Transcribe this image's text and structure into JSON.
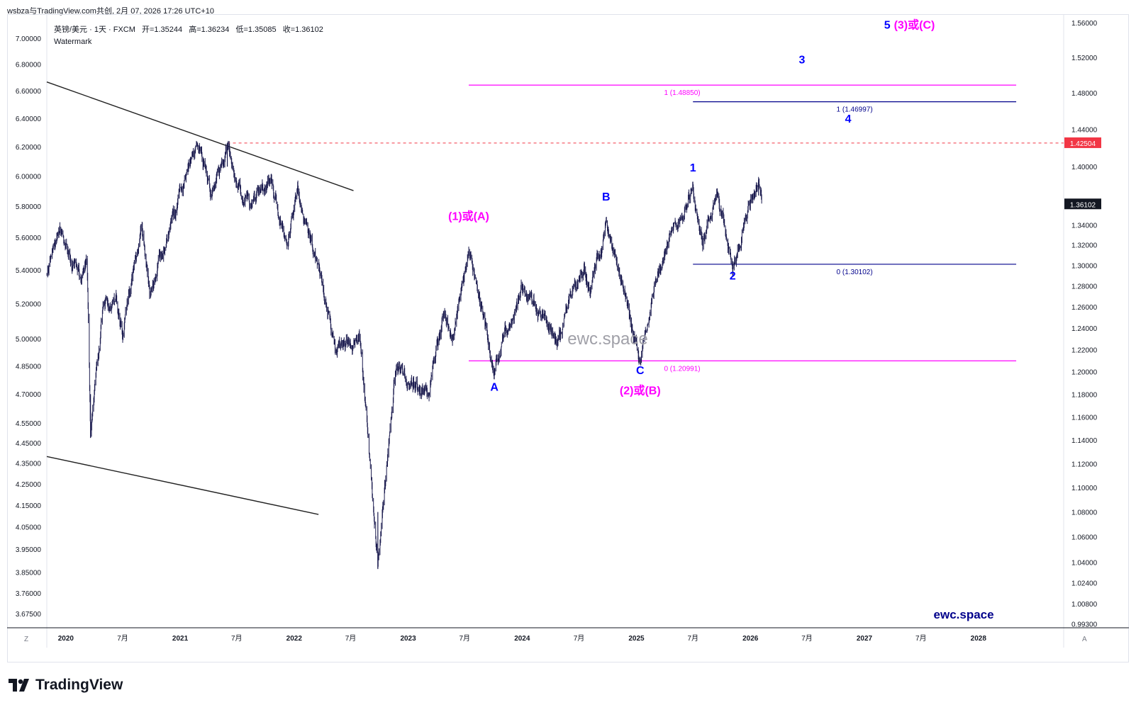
{
  "header": {
    "attribution": "wsbza与TradingView.com共创, 2月 07, 2026 17:26 UTC+10"
  },
  "legend": {
    "symbol": "英镑/美元 · 1天 · FXCM",
    "open": "开=1.35244",
    "high": "高=1.36234",
    "low": "低=1.35085",
    "close": "收=1.36102",
    "watermark": "Watermark"
  },
  "footer": {
    "logo_text": "TradingView",
    "left_button": "Z",
    "right_button": "A"
  },
  "colors": {
    "candles": "#1a1a4e",
    "pink": "#ff00ff",
    "blue": "#0000ff",
    "navy": "#00008b",
    "red_dashed": "#f23645",
    "trend": "#222222"
  },
  "chart_data": {
    "type": "candlestick",
    "instrument": "GBP/USD daily (FXCM)",
    "x_labels": [
      "2020",
      "7月",
      "2021",
      "7月",
      "2022",
      "7月",
      "2023",
      "7月",
      "2024",
      "7月",
      "2025",
      "7月",
      "2026",
      "7月",
      "2027",
      "7月",
      "2028"
    ],
    "x_range": [
      "2019-11-01",
      "2028-09-30"
    ],
    "right_axis": {
      "scale": "log",
      "range": [
        0.99,
        1.57
      ],
      "ticks": [
        "1.56000",
        "1.52000",
        "1.48000",
        "1.44000",
        "1.40000",
        "1.34000",
        "1.32000",
        "1.30000",
        "1.28000",
        "1.26000",
        "1.24000",
        "1.22000",
        "1.20000",
        "1.18000",
        "1.16000",
        "1.14000",
        "1.12000",
        "1.10000",
        "1.08000",
        "1.06000",
        "1.04000",
        "1.02400",
        "1.00800",
        "0.99300"
      ],
      "last_price": "1.36102",
      "marked_level": "1.42504"
    },
    "left_axis": {
      "scale": "log",
      "ticks": [
        "7.00000",
        "6.80000",
        "6.60000",
        "6.40000",
        "6.20000",
        "6.00000",
        "5.80000",
        "5.60000",
        "5.40000",
        "5.20000",
        "5.00000",
        "4.85000",
        "4.70000",
        "4.55000",
        "4.45000",
        "4.35000",
        "4.25000",
        "4.15000",
        "4.05000",
        "3.95000",
        "3.85000",
        "3.76000",
        "3.67500"
      ]
    },
    "price_path": [
      [
        "2019-11-01",
        1.29
      ],
      [
        "2019-12-13",
        1.34
      ],
      [
        "2020-01-15",
        1.31
      ],
      [
        "2020-02-20",
        1.29
      ],
      [
        "2020-03-09",
        1.31
      ],
      [
        "2020-03-20",
        1.145
      ],
      [
        "2020-04-30",
        1.26
      ],
      [
        "2020-06-10",
        1.27
      ],
      [
        "2020-06-30",
        1.23
      ],
      [
        "2020-09-01",
        1.34
      ],
      [
        "2020-09-25",
        1.27
      ],
      [
        "2020-12-31",
        1.37
      ],
      [
        "2021-02-24",
        1.42
      ],
      [
        "2021-04-12",
        1.37
      ],
      [
        "2021-06-01",
        1.423
      ],
      [
        "2021-07-20",
        1.36
      ],
      [
        "2021-10-20",
        1.385
      ],
      [
        "2021-12-08",
        1.32
      ],
      [
        "2022-01-13",
        1.375
      ],
      [
        "2022-03-15",
        1.3
      ],
      [
        "2022-05-13",
        1.22
      ],
      [
        "2022-08-01",
        1.23
      ],
      [
        "2022-09-26",
        1.035
      ],
      [
        "2022-11-24",
        1.21
      ],
      [
        "2023-01-06",
        1.19
      ],
      [
        "2023-03-08",
        1.18
      ],
      [
        "2023-04-28",
        1.26
      ],
      [
        "2023-05-25",
        1.23
      ],
      [
        "2023-07-14",
        1.314
      ],
      [
        "2023-10-04",
        1.2037
      ],
      [
        "2023-12-28",
        1.28
      ],
      [
        "2024-04-22",
        1.23
      ],
      [
        "2024-07-17",
        1.304
      ],
      [
        "2024-08-05",
        1.27
      ],
      [
        "2024-09-26",
        1.343
      ],
      [
        "2025-01-13",
        1.2099
      ],
      [
        "2025-03-10",
        1.295
      ],
      [
        "2025-07-01",
        1.378
      ],
      [
        "2025-08-01",
        1.32
      ],
      [
        "2025-09-17",
        1.37
      ],
      [
        "2025-11-05",
        1.301
      ],
      [
        "2026-01-27",
        1.386
      ],
      [
        "2026-02-06",
        1.361
      ]
    ],
    "fib_levels": [
      {
        "label": "1 (1.48850)",
        "value": 1.4885,
        "from": "2023-07-14",
        "to": "2028-05-01",
        "color": "#ff00ff"
      },
      {
        "label": "0 (1.20991)",
        "value": 1.20991,
        "from": "2023-07-14",
        "to": "2028-05-01",
        "color": "#ff00ff"
      },
      {
        "label": "1 (1.46997)",
        "value": 1.46997,
        "from": "2025-07-01",
        "to": "2028-05-01",
        "color": "#00008b"
      },
      {
        "label": "0 (1.30102)",
        "value": 1.30102,
        "from": "2025-07-01",
        "to": "2028-05-01",
        "color": "#00008b"
      }
    ],
    "resistance_level": {
      "value": 1.42504,
      "from": "2021-06-01",
      "style": "dashed"
    },
    "trendlines": [
      {
        "from": [
          "2019-11-01",
          1.492
        ],
        "to": [
          "2022-07-10",
          1.375
        ]
      },
      {
        "from": [
          "2019-11-01",
          1.126
        ],
        "to": [
          "2022-03-20",
          1.078
        ]
      }
    ],
    "wave_labels": [
      {
        "text": "(1)或(A)",
        "date": "2023-07-14",
        "price": 1.345,
        "color": "#ff00ff"
      },
      {
        "text": "A",
        "date": "2023-10-04",
        "price": 1.183,
        "color": "#0000ff"
      },
      {
        "text": "B",
        "date": "2024-09-26",
        "price": 1.365,
        "color": "#0000ff"
      },
      {
        "text": "C",
        "date": "2025-01-13",
        "price": 1.198,
        "color": "#0000ff"
      },
      {
        "text": "(2)或(B)",
        "date": "2025-01-13",
        "price": 1.18,
        "color": "#ff00ff"
      },
      {
        "text": "1",
        "date": "2025-07-01",
        "price": 1.395,
        "color": "#0000ff"
      },
      {
        "text": "2",
        "date": "2025-11-05",
        "price": 1.286,
        "color": "#0000ff"
      },
      {
        "text": "3",
        "date": "2026-06-15",
        "price": 1.513,
        "color": "#0000ff"
      },
      {
        "text": "4",
        "date": "2026-11-10",
        "price": 1.447,
        "color": "#0000ff"
      },
      {
        "text": "5",
        "date": "2027-03-15",
        "price": 1.553,
        "color": "#0000ff"
      },
      {
        "text": "(3)或(C)",
        "date": "2027-06-10",
        "price": 1.553,
        "color": "#ff00ff"
      }
    ],
    "annotations": [
      {
        "text": "ewc.space",
        "date": "2024-10-01",
        "price": 1.225,
        "color": "#a0a0a8"
      },
      {
        "text": "ewc.space",
        "date": "2027-11-15",
        "price": 0.997,
        "color": "#00008b"
      }
    ]
  }
}
